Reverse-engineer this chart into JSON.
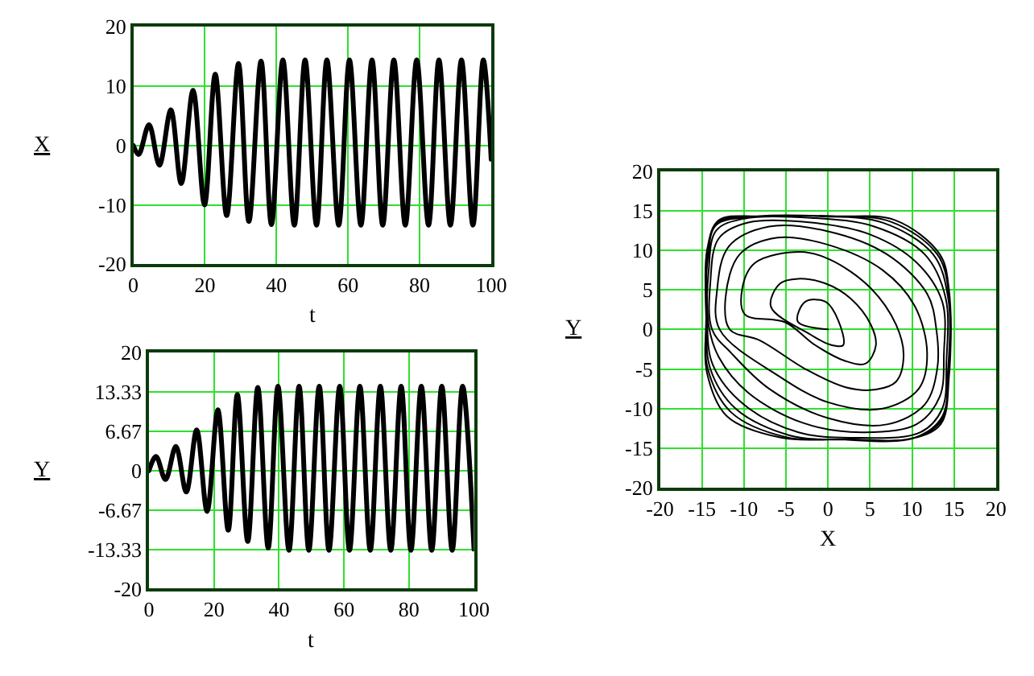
{
  "chart_data": [
    {
      "type": "line",
      "xlabel": "t",
      "ylabel": "X",
      "xlim": [
        0,
        100
      ],
      "ylim": [
        -20,
        20
      ],
      "xticks": [
        0,
        20,
        40,
        60,
        80,
        100
      ],
      "yticks": [
        -20,
        -10,
        0,
        10,
        20
      ],
      "grid": true,
      "series": [
        {
          "color": "#000000",
          "x": [
            0,
            1.5,
            4.4,
            7.3,
            10.5,
            13.4,
            16.7,
            19.9,
            22.9,
            26.1,
            29.4,
            32.3,
            35.7,
            38.6,
            41.8,
            45,
            48,
            51.2,
            54.1,
            57.4,
            60.4,
            63.6,
            66.7,
            69.7,
            72.8,
            76,
            79.2,
            82.5,
            85.4,
            88.6,
            91.7,
            94.9,
            97.8,
            100
          ],
          "values": [
            0,
            -1.5,
            3.5,
            -3.3,
            6,
            -6.4,
            9.3,
            -10,
            12,
            -11.8,
            13.8,
            -12.8,
            14.2,
            -13.3,
            14.4,
            -13.4,
            14.4,
            -13.4,
            14.4,
            -13.4,
            14.4,
            -13.4,
            14.4,
            -13.4,
            14.4,
            -13.4,
            14.4,
            -13.4,
            14.4,
            -13.4,
            14.4,
            -13.4,
            14.4,
            -2.3
          ]
        }
      ]
    },
    {
      "type": "line",
      "xlabel": "t",
      "ylabel": "Y",
      "xlim": [
        0,
        100
      ],
      "ylim": [
        -20,
        20
      ],
      "xticks": [
        0,
        20,
        40,
        60,
        80,
        100
      ],
      "yticks": [
        -20,
        -13.33,
        -6.67,
        0,
        6.67,
        13.33,
        20
      ],
      "grid": true,
      "series": [
        {
          "color": "#000000",
          "x": [
            0,
            2.2,
            5.1,
            8.3,
            11.5,
            14.7,
            17.9,
            21.2,
            24.4,
            27.2,
            30.4,
            33.5,
            36.7,
            39.7,
            43.1,
            46.2,
            49.2,
            52.4,
            55.4,
            58.7,
            61.7,
            64.9,
            68.1,
            71.2,
            74.4,
            77.6,
            80.6,
            83.8,
            87,
            90.1,
            93.3,
            96.5,
            100
          ],
          "values": [
            0,
            2.4,
            -1.5,
            4.1,
            -3.6,
            6.9,
            -6.9,
            10.3,
            -10.1,
            12.9,
            -12,
            14.1,
            -13.1,
            14.3,
            -13.5,
            14.3,
            -13.5,
            14.3,
            -13.5,
            14.3,
            -13.5,
            14.3,
            -13.5,
            14.3,
            -13.5,
            14.3,
            -13.5,
            14.3,
            -13.5,
            14.3,
            -13.5,
            14.3,
            -13.3
          ]
        }
      ]
    },
    {
      "type": "line",
      "xlabel": "X",
      "ylabel": "Y",
      "xlim": [
        -20,
        20
      ],
      "ylim": [
        -20,
        20
      ],
      "xticks": [
        -20,
        -15,
        -10,
        -5,
        0,
        5,
        10,
        15,
        20
      ],
      "yticks": [
        -20,
        -15,
        -10,
        -5,
        0,
        5,
        10,
        15,
        20
      ],
      "grid": true,
      "x": [
        0,
        -3.6,
        -2.7,
        -0.3,
        1.2,
        1.8,
        0.2,
        -2.0,
        -6.8,
        -5.7,
        -3.6,
        -0.3,
        2.7,
        5.1,
        5.7,
        4.5,
        2.1,
        -1.5,
        -5.1,
        -9.9,
        -10.2,
        -8.7,
        -3.3,
        0.3,
        5.1,
        8.1,
        9.0,
        8.1,
        5.7,
        2.1,
        -2.7,
        -8.1,
        -11.7,
        -12.2,
        -10.5,
        -6.0,
        0.0,
        6.5,
        10.3,
        11.8,
        10.8,
        6.5,
        0.0,
        -6.0,
        -12.9,
        -13.2,
        -11.8,
        -7.0,
        0.0,
        7.0,
        11.8,
        12.9,
        13.0,
        11.5,
        7.0,
        0.0,
        -7.0,
        -11.5,
        -13.8,
        -14.0,
        -13.0,
        -9.5,
        -2.0,
        5.0,
        10.5,
        13.6,
        13.8,
        13.3,
        10.5,
        4.0,
        -3.0,
        -9.5,
        -13.0,
        -14.2,
        -14.2,
        -13.3,
        -10.0,
        -2.0,
        5.5,
        11.5,
        14.0,
        14.1,
        13.6,
        11.0,
        4.0,
        -3.5,
        -10.0,
        -13.7,
        -14.4,
        -14.3,
        -13.3,
        -9.0,
        -1.0,
        6.5,
        12.5,
        14.3,
        14.3,
        13.6,
        10.5,
        3.0,
        -4.5,
        -11.0,
        -14.0,
        -14.5,
        -14.4,
        -13.2,
        -8.5,
        0.0,
        7.5,
        13.0,
        14.4,
        14.4,
        13.5,
        10.0,
        2.0,
        -5.0,
        -11.5,
        -14.3,
        -14.5,
        -14.4,
        -13.0,
        -8.0,
        1.0,
        8.0,
        13.3,
        14.4,
        14.4,
        13.4,
        9.5,
        1.0,
        -5.5,
        -12.0,
        -14.4,
        -14.5
      ],
      "series": [
        {
          "color": "#000000",
          "values": [
            0,
            1.0,
            3.5,
            3.5,
            1.2,
            -2.0,
            -1.9,
            -0.7,
            2.9,
            5.8,
            6.4,
            5.8,
            3.9,
            0.6,
            -2.0,
            -4.3,
            -4.0,
            -2.0,
            0.9,
            1.9,
            5.2,
            8.4,
            9.8,
            8.8,
            5.2,
            0.6,
            -3.3,
            -6.6,
            -7.6,
            -7.3,
            -5.0,
            -1.4,
            0.0,
            4.0,
            9.5,
            11.6,
            10.7,
            7.5,
            3.0,
            -3.0,
            -7.5,
            -10.0,
            -9.2,
            -5.8,
            0.0,
            5.0,
            10.5,
            13.0,
            12.4,
            9.5,
            4.5,
            0.0,
            -5.0,
            -9.5,
            -12.0,
            -11.2,
            -7.5,
            -3.0,
            0.0,
            6.0,
            11.5,
            13.5,
            13.5,
            12.0,
            8.5,
            3.5,
            -3.0,
            -8.5,
            -12.0,
            -13.0,
            -11.8,
            -8.0,
            -3.5,
            0.5,
            7.5,
            12.5,
            14.0,
            14.1,
            13.0,
            9.5,
            4.0,
            -4.0,
            -10.0,
            -13.0,
            -13.7,
            -13.0,
            -9.5,
            -4.5,
            1.0,
            9.0,
            13.2,
            14.2,
            14.3,
            13.5,
            9.5,
            4.0,
            -5.0,
            -11.0,
            -13.6,
            -13.9,
            -13.4,
            -10.0,
            -5.0,
            1.5,
            9.5,
            13.5,
            14.3,
            14.3,
            13.6,
            9.5,
            4.5,
            -5.5,
            -11.5,
            -13.8,
            -13.9,
            -13.6,
            -10.5,
            -5.0,
            2.0,
            10.0,
            13.8,
            14.3,
            14.3,
            13.8,
            9.5,
            5.0,
            -6.0,
            -12.0,
            -13.9,
            -13.9,
            -13.7,
            -11.0,
            -5.5,
            0.0
          ]
        }
      ]
    }
  ]
}
